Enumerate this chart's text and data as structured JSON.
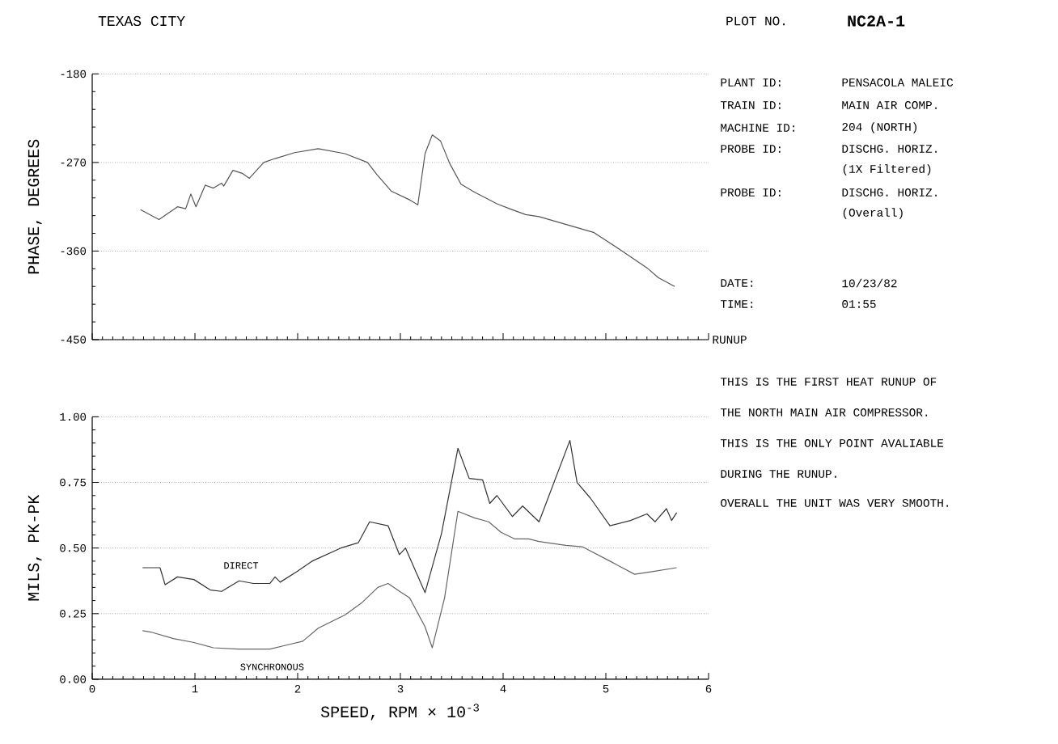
{
  "chart_data": [
    {
      "type": "line",
      "title": "TEXAS CITY",
      "ylabel": "PHASE, DEGREES",
      "xlim": [
        0,
        6
      ],
      "xticks": [
        0,
        1,
        2,
        3,
        4,
        5,
        6
      ],
      "ylim": [
        -450,
        -180
      ],
      "yticks": [
        -450,
        -360,
        -270,
        -180
      ],
      "grid": "y",
      "tick_labels": "y",
      "marker": "none",
      "series": [
        {
          "color": "#555555",
          "x": [
            0.47,
            0.65,
            0.83,
            0.91,
            0.96,
            1.01,
            1.1,
            1.18,
            1.26,
            1.28,
            1.37,
            1.46,
            1.53,
            1.67,
            1.78,
            1.97,
            2.2,
            2.46,
            2.68,
            2.77,
            2.91,
            3.09,
            3.17,
            3.24,
            3.31,
            3.39,
            3.48,
            3.59,
            3.72,
            3.94,
            4.09,
            4.22,
            4.35,
            4.88,
            5.13,
            5.4,
            5.51,
            5.67
          ],
          "values": [
            -318,
            -328,
            -315,
            -317,
            -302,
            -315,
            -293,
            -296,
            -291,
            -294,
            -278,
            -281,
            -286,
            -270,
            -266,
            -260,
            -256,
            -261,
            -270,
            -282,
            -299,
            -308,
            -313,
            -261,
            -242,
            -248,
            -271,
            -292,
            -300,
            -312,
            -318,
            -323,
            -325,
            -341,
            -358,
            -377,
            -387,
            -396
          ]
        }
      ]
    },
    {
      "type": "line",
      "xlabel": "SPEED, RPM × 10$^{-3}$",
      "ylabel": "MILS, PK-PK",
      "xlim": [
        0,
        6
      ],
      "xticks": [
        0,
        1,
        2,
        3,
        4,
        5,
        6
      ],
      "ylim": [
        0,
        1
      ],
      "yticks": [
        {
          "value": 0,
          "label": "0.00"
        },
        {
          "value": 0.25,
          "label": "0.25"
        },
        {
          "value": 0.5,
          "label": "0.50"
        },
        {
          "value": 0.75,
          "label": "0.75"
        },
        {
          "value": 1,
          "label": "1.00"
        }
      ],
      "grid": "y",
      "marker": "none",
      "series": [
        {
          "name": "DIRECT",
          "color": "#333333",
          "x": [
            0.49,
            0.66,
            0.71,
            0.83,
            0.99,
            1.15,
            1.26,
            1.43,
            1.57,
            1.73,
            1.78,
            1.83,
            1.99,
            2.14,
            2.42,
            2.59,
            2.7,
            2.88,
            2.99,
            3.05,
            3.24,
            3.4,
            3.56,
            3.67,
            3.8,
            3.87,
            3.94,
            4.09,
            4.19,
            4.35,
            4.65,
            4.72,
            4.85,
            5.04,
            5.24,
            5.4,
            5.48,
            5.59,
            5.64,
            5.69
          ],
          "values": [
            0.425,
            0.425,
            0.36,
            0.39,
            0.38,
            0.34,
            0.335,
            0.375,
            0.365,
            0.365,
            0.39,
            0.37,
            0.41,
            0.45,
            0.5,
            0.52,
            0.6,
            0.585,
            0.475,
            0.5,
            0.33,
            0.555,
            0.88,
            0.765,
            0.76,
            0.67,
            0.7,
            0.62,
            0.66,
            0.6,
            0.91,
            0.75,
            0.69,
            0.585,
            0.605,
            0.63,
            0.6,
            0.65,
            0.605,
            0.635
          ]
        },
        {
          "name": "SYNCHRONOUS",
          "color": "#666666",
          "x": [
            0.49,
            0.57,
            0.79,
            0.99,
            1.18,
            1.42,
            1.73,
            1.89,
            2.05,
            2.2,
            2.46,
            2.62,
            2.78,
            2.88,
            3.01,
            3.09,
            3.24,
            3.31,
            3.43,
            3.56,
            3.72,
            3.86,
            3.98,
            4.11,
            4.25,
            4.35,
            4.61,
            4.77,
            5.04,
            5.28,
            5.45,
            5.69
          ],
          "values": [
            0.185,
            0.18,
            0.155,
            0.14,
            0.12,
            0.115,
            0.115,
            0.13,
            0.145,
            0.195,
            0.245,
            0.29,
            0.35,
            0.365,
            0.33,
            0.31,
            0.2,
            0.12,
            0.31,
            0.64,
            0.615,
            0.6,
            0.56,
            0.535,
            0.535,
            0.525,
            0.51,
            0.505,
            0.45,
            0.4,
            0.41,
            0.425
          ]
        }
      ]
    },
    {
      "type": "other",
      "title": "PLOT NO.",
      "subtitle": "NC2A-1",
      "annotations": [
        "PLANT ID:",
        "PENSACOLA MALEIC",
        "TRAIN ID:",
        "MAIN AIR COMP.",
        "MACHINE ID:",
        "204 (NORTH)",
        "PROBE ID:",
        "DISCHG. HORIZ.",
        "(1X Filtered)",
        "PROBE ID:",
        "DISCHG. HORIZ.",
        "(Overall)",
        "DATE:",
        "10/23/82",
        "TIME:",
        "01:55",
        "RUNUP",
        "THIS IS THE FIRST HEAT RUNUP OF",
        "THE NORTH MAIN AIR COMPRESSOR.",
        "THIS IS THE ONLY POINT AVALIABLE",
        "DURING THE RUNUP.",
        "OVERALL THE UNIT WAS VERY SMOOTH."
      ]
    }
  ]
}
